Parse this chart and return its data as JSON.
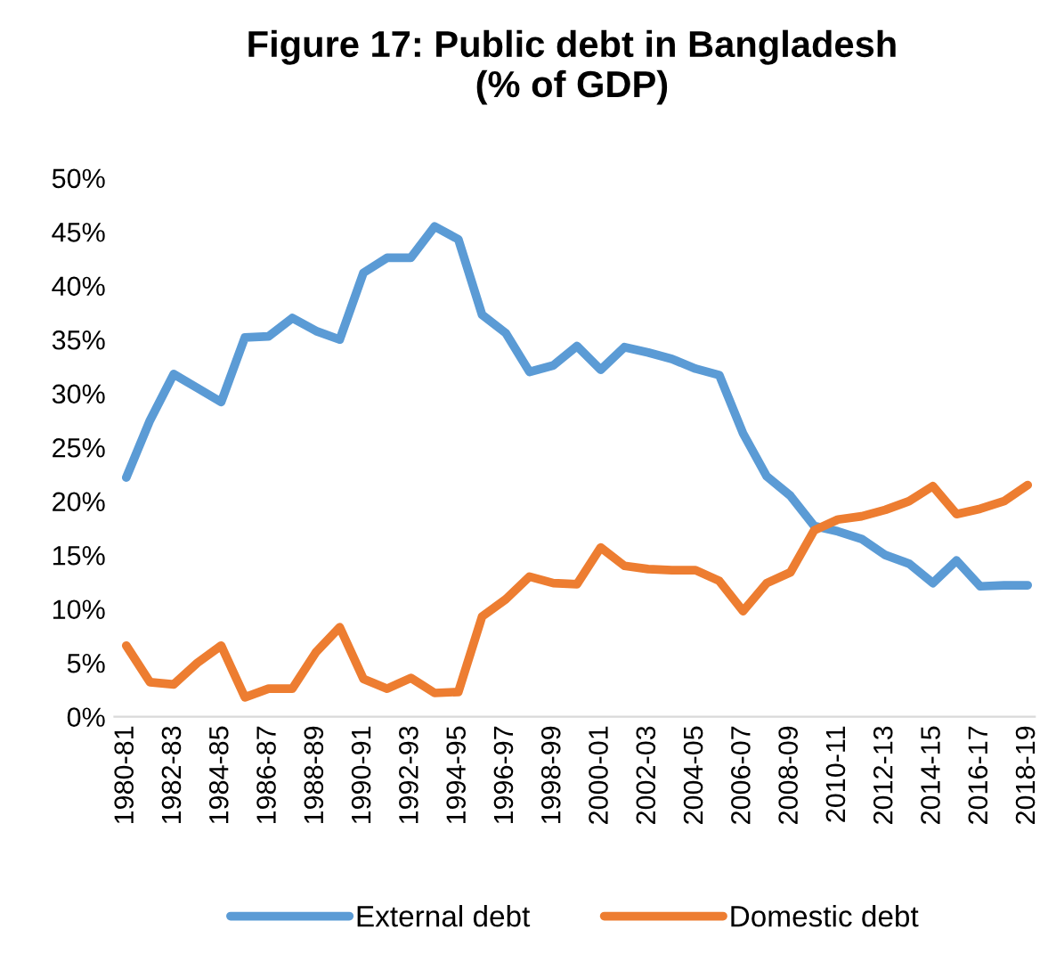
{
  "chart_data": {
    "type": "line",
    "title": "Figure 17: Public debt in Bangladesh\n(% of GDP)",
    "categories": [
      "1980-81",
      null,
      "1982-83",
      null,
      "1984-85",
      null,
      "1986-87",
      null,
      "1988-89",
      null,
      "1990-91",
      null,
      "1992-93",
      null,
      "1994-95",
      null,
      "1996-97",
      null,
      "1998-99",
      null,
      "2000-01",
      null,
      "2002-03",
      null,
      "2004-05",
      null,
      "2006-07",
      null,
      "2008-09",
      null,
      "2010-11",
      null,
      "2012-13",
      null,
      "2014-15",
      null,
      "2016-17",
      null,
      "2018-19"
    ],
    "series": [
      {
        "name": "External debt",
        "color": "#5b9bd5",
        "values": [
          22.2,
          27.5,
          31.8,
          30.5,
          29.2,
          35.2,
          35.3,
          37.0,
          35.8,
          35.0,
          41.2,
          42.6,
          42.6,
          45.5,
          44.3,
          37.3,
          35.6,
          32.0,
          32.6,
          34.4,
          32.2,
          34.3,
          33.8,
          33.2,
          32.3,
          31.7,
          26.3,
          22.3,
          20.5,
          17.7,
          17.2,
          16.5,
          15.0,
          14.2,
          12.4,
          14.5,
          12.1,
          12.2,
          12.2
        ]
      },
      {
        "name": "Domestic debt",
        "color": "#ed7d31",
        "values": [
          6.6,
          3.2,
          3.0,
          5.0,
          6.6,
          1.8,
          2.6,
          2.6,
          6.0,
          8.3,
          3.5,
          2.6,
          3.6,
          2.2,
          2.3,
          9.3,
          10.9,
          13.0,
          12.4,
          12.3,
          15.7,
          14.0,
          13.7,
          13.6,
          13.6,
          12.6,
          9.8,
          12.4,
          13.4,
          17.3,
          18.3,
          18.6,
          19.2,
          20.0,
          21.4,
          18.8,
          19.3,
          20.0,
          21.5
        ]
      }
    ],
    "ylim": [
      0,
      50
    ],
    "yticks": [
      {
        "value": 0,
        "label": "0%"
      },
      {
        "value": 5,
        "label": "5%"
      },
      {
        "value": 10,
        "label": "10%"
      },
      {
        "value": 15,
        "label": "15%"
      },
      {
        "value": 20,
        "label": "20%"
      },
      {
        "value": 25,
        "label": "25%"
      },
      {
        "value": 30,
        "label": "30%"
      },
      {
        "value": 35,
        "label": "35%"
      },
      {
        "value": 40,
        "label": "40%"
      },
      {
        "value": 45,
        "label": "45%"
      },
      {
        "value": 50,
        "label": "50%"
      }
    ],
    "grid": false,
    "legend": "bottom",
    "line_style": "solid",
    "marker": "none"
  }
}
